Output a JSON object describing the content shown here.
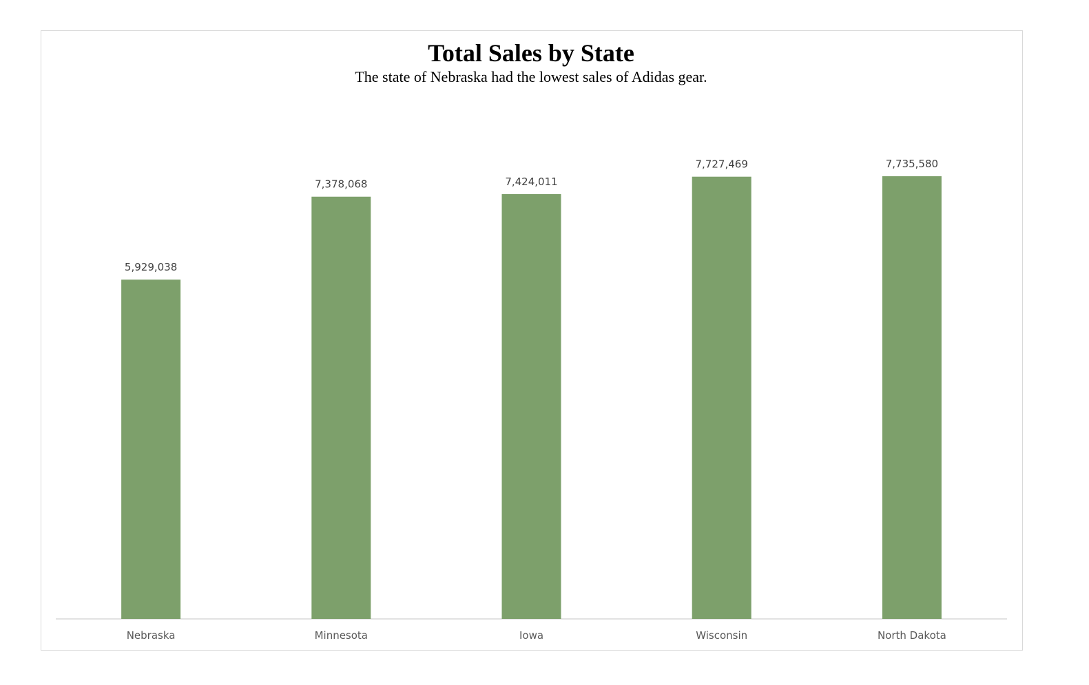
{
  "chart_data": {
    "type": "bar",
    "title": "Total Sales by State",
    "subtitle": "The state of Nebraska had the lowest sales of Adidas gear.",
    "categories": [
      "Nebraska",
      "Minnesota",
      "Iowa",
      "Wisconsin",
      "North Dakota"
    ],
    "values": [
      5929038,
      7378068,
      7424011,
      7727469,
      7735580
    ],
    "value_labels": [
      "5,929,038",
      "7,378,068",
      "7,424,011",
      "7,727,469",
      "7,735,580"
    ],
    "xlabel": "",
    "ylabel": "",
    "ylim": [
      0,
      9000000
    ],
    "grid": false,
    "legend": "none",
    "bar_color": "#7da06b",
    "axis_color": "#d9d9d9"
  }
}
